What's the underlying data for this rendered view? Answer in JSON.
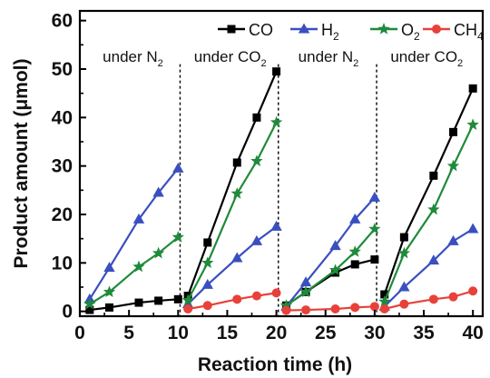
{
  "chart_data": {
    "type": "line",
    "xlabel": "Reaction time (h)",
    "ylabel": "Product amount (μmol)",
    "xlim": [
      0,
      41
    ],
    "ylim": [
      -1,
      62
    ],
    "xticks": [
      0,
      5,
      10,
      15,
      20,
      25,
      30,
      35,
      40
    ],
    "yticks": [
      0,
      10,
      20,
      30,
      40,
      50,
      60
    ],
    "grid": false,
    "legend": "top",
    "dividers": [
      10.2,
      20.2,
      30.2
    ],
    "annotations": [
      {
        "base": "under N",
        "sub": "2",
        "x": 5.4
      },
      {
        "base": "under CO",
        "sub": "2",
        "x": 15.3
      },
      {
        "base": "under N",
        "sub": "2",
        "x": 25.3
      },
      {
        "base": "under CO",
        "sub": "2",
        "x": 35.3
      }
    ],
    "series": [
      {
        "base": "CO",
        "sub": "",
        "color": "#000000",
        "marker": "square",
        "segments": [
          [
            [
              1,
              0.3
            ],
            [
              3,
              0.8
            ],
            [
              6,
              1.8
            ],
            [
              8,
              2.2
            ],
            [
              10,
              2.5
            ]
          ],
          [
            [
              11,
              3.2
            ],
            [
              13,
              14.2
            ],
            [
              16,
              30.7
            ],
            [
              18,
              40.0
            ],
            [
              20,
              49.5
            ]
          ],
          [
            [
              21,
              1.2
            ],
            [
              23,
              4.0
            ],
            [
              26,
              8.0
            ],
            [
              28,
              9.7
            ],
            [
              30,
              10.7
            ]
          ],
          [
            [
              31,
              3.5
            ],
            [
              33,
              15.3
            ],
            [
              36,
              28.0
            ],
            [
              38,
              37.0
            ],
            [
              40,
              46.0
            ]
          ]
        ]
      },
      {
        "base": "H",
        "sub": "2",
        "color": "#3a4fbf",
        "marker": "triangle",
        "segments": [
          [
            [
              1,
              2.5
            ],
            [
              3,
              9.0
            ],
            [
              6,
              19.0
            ],
            [
              8,
              24.5
            ],
            [
              10,
              29.5
            ]
          ],
          [
            [
              11,
              1.5
            ],
            [
              13,
              5.5
            ],
            [
              16,
              11.0
            ],
            [
              18,
              14.5
            ],
            [
              20,
              17.5
            ]
          ],
          [
            [
              21,
              1.0
            ],
            [
              23,
              6.0
            ],
            [
              26,
              13.5
            ],
            [
              28,
              19.0
            ],
            [
              30,
              23.5
            ]
          ],
          [
            [
              31,
              1.0
            ],
            [
              33,
              5.0
            ],
            [
              36,
              10.5
            ],
            [
              38,
              14.5
            ],
            [
              40,
              17.0
            ]
          ]
        ]
      },
      {
        "base": "O",
        "sub": "2",
        "color": "#1f8a3a",
        "marker": "star",
        "segments": [
          [
            [
              1,
              1.5
            ],
            [
              3,
              4.0
            ],
            [
              6,
              9.2
            ],
            [
              8,
              12.0
            ],
            [
              10,
              15.3
            ]
          ],
          [
            [
              11,
              2.3
            ],
            [
              13,
              10.0
            ],
            [
              16,
              24.3
            ],
            [
              18,
              31.0
            ],
            [
              20,
              39.0
            ]
          ],
          [
            [
              21,
              1.2
            ],
            [
              23,
              4.0
            ],
            [
              26,
              8.5
            ],
            [
              28,
              12.3
            ],
            [
              30,
              17.0
            ]
          ],
          [
            [
              31,
              2.0
            ],
            [
              33,
              12.0
            ],
            [
              36,
              21.0
            ],
            [
              38,
              30.0
            ],
            [
              40,
              38.5
            ]
          ]
        ]
      },
      {
        "base": "CH",
        "sub": "4",
        "color": "#e8413a",
        "marker": "circle",
        "segments": [
          [
            [
              11,
              0.5
            ],
            [
              13,
              1.2
            ],
            [
              16,
              2.5
            ],
            [
              18,
              3.2
            ],
            [
              20,
              3.8
            ]
          ],
          [
            [
              21,
              0.2
            ],
            [
              23,
              0.3
            ],
            [
              26,
              0.5
            ],
            [
              28,
              0.8
            ],
            [
              30,
              1.0
            ]
          ],
          [
            [
              31,
              0.5
            ],
            [
              33,
              1.5
            ],
            [
              36,
              2.5
            ],
            [
              38,
              3.0
            ],
            [
              40,
              4.2
            ]
          ]
        ]
      }
    ]
  }
}
